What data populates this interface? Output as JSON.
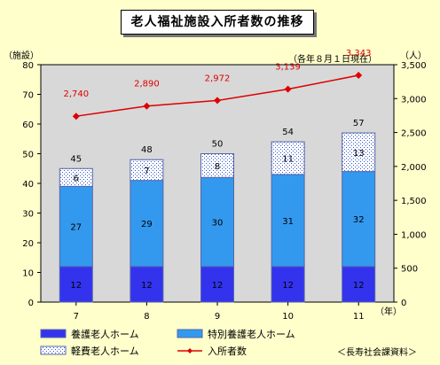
{
  "chart_data": {
    "type": "bar",
    "title": "老人福祉施設入所者数の推移",
    "subtitle": "（各年８月１日現在）",
    "categories": [
      "7",
      "8",
      "9",
      "10",
      "11"
    ],
    "x_unit": "（年）",
    "y_left_label": "（施設）",
    "y_right_label": "（人）",
    "ylim_left": [
      0,
      80
    ],
    "yticks_left": [
      0,
      10,
      20,
      30,
      40,
      50,
      60,
      70,
      80
    ],
    "ylim_right": [
      0,
      3500
    ],
    "yticks_right": [
      "0",
      "500",
      "1,000",
      "1,500",
      "2,000",
      "2,500",
      "3,000",
      "3,500"
    ],
    "series": [
      {
        "name": "養護老人ホーム",
        "values": [
          12,
          12,
          12,
          12,
          12
        ],
        "color": "#3333ee"
      },
      {
        "name": "特別養護老人ホーム",
        "values": [
          27,
          29,
          30,
          31,
          32
        ],
        "color": "#3399ee"
      },
      {
        "name": "軽費老人ホーム",
        "values": [
          6,
          7,
          8,
          11,
          13
        ],
        "color": "#ffffff",
        "pattern": "dotted"
      }
    ],
    "totals": [
      "45",
      "48",
      "50",
      "54",
      "57"
    ],
    "line_series": {
      "name": "入所者数",
      "values": [
        2740,
        2890,
        2972,
        3139,
        3343
      ],
      "labels": [
        "2,740",
        "2,890",
        "2,972",
        "3,139",
        "3,343"
      ],
      "color": "#dd0000",
      "axis": "right"
    },
    "grid": false,
    "legend": "bottom",
    "plot_background": "#d8d8d8"
  },
  "source": "＜長寿社会課資料＞"
}
